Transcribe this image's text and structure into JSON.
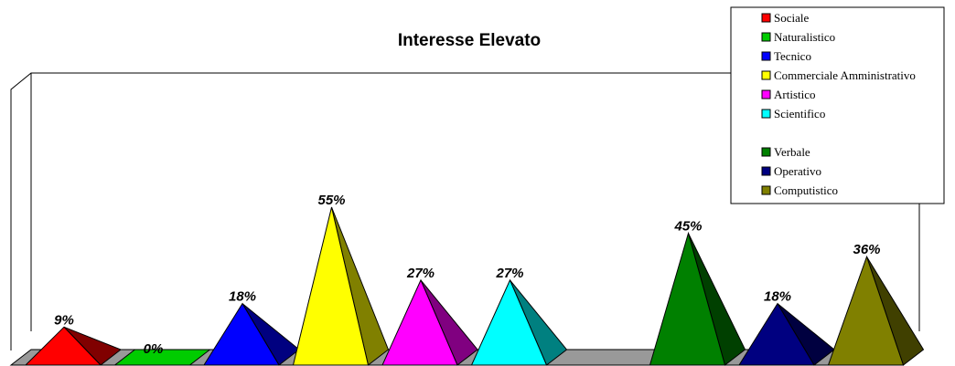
{
  "chart_data": {
    "type": "bar",
    "shape": "pyramid-3d",
    "title": "Interesse Elevato",
    "xlabel": "",
    "ylabel": "",
    "ylim": [
      0,
      60
    ],
    "grid": false,
    "legend_position": "top-right",
    "categories": [
      "Sociale",
      "Naturalistico",
      "Tecnico",
      "Commerciale Amministrativo",
      "Artistico",
      "Scientifico",
      "",
      "Verbale",
      "Operativo",
      "Computistico"
    ],
    "values": [
      9,
      0,
      18,
      55,
      27,
      27,
      null,
      45,
      18,
      36
    ],
    "labels": [
      "9%",
      "0%",
      "18%",
      "55%",
      "27%",
      "27%",
      "",
      "45%",
      "18%",
      "36%"
    ],
    "colors": [
      "#ff0000",
      "#00cc00",
      "#0000ff",
      "#ffff00",
      "#ff00ff",
      "#00ffff",
      "",
      "#008000",
      "#000080",
      "#808000"
    ]
  },
  "legend": [
    {
      "label": "Sociale",
      "color": "#ff0000"
    },
    {
      "label": "Naturalistico",
      "color": "#00cc00"
    },
    {
      "label": "Tecnico",
      "color": "#0000ff"
    },
    {
      "label": "Commerciale Amministrativo",
      "color": "#ffff00"
    },
    {
      "label": "Artistico",
      "color": "#ff00ff"
    },
    {
      "label": "Scientifico",
      "color": "#00ffff"
    },
    {
      "label": "",
      "color": ""
    },
    {
      "label": "Verbale",
      "color": "#008000"
    },
    {
      "label": "Operativo",
      "color": "#000080"
    },
    {
      "label": "Computistico",
      "color": "#808000"
    }
  ]
}
